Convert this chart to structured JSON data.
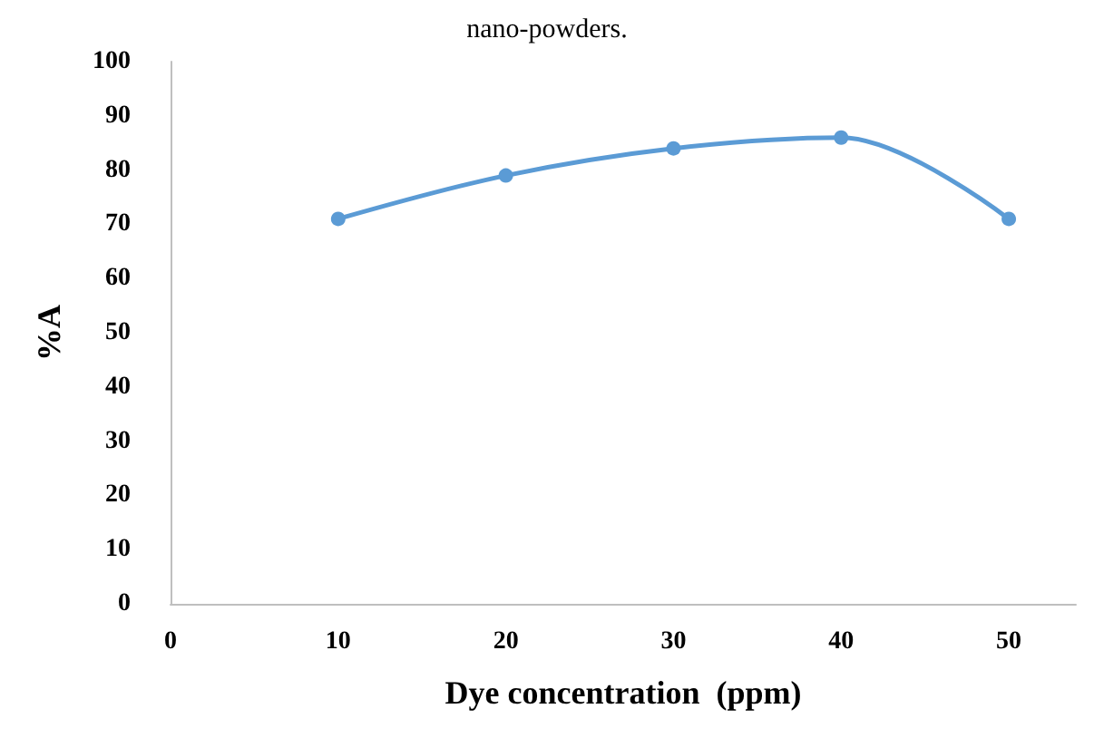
{
  "chart_data": {
    "type": "line",
    "annotations": [
      "nano-powders."
    ],
    "xlabel": "Dye concentration  (ppm)",
    "ylabel": "%A",
    "x": [
      10,
      20,
      30,
      40,
      50
    ],
    "series": [
      {
        "color": "#5b9bd5",
        "values": [
          71,
          79,
          84,
          86,
          71
        ]
      }
    ],
    "xlim": [
      0,
      54
    ],
    "xticks": [
      0,
      10,
      20,
      30,
      40,
      50
    ],
    "ylim": [
      0,
      100
    ],
    "yticks": [
      0,
      10,
      20,
      30,
      40,
      50,
      60,
      70,
      80,
      90,
      100
    ],
    "grid": false,
    "marker": "circle",
    "line_style": "solid"
  }
}
